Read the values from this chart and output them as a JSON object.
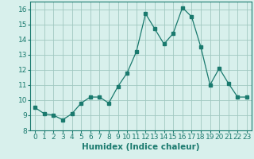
{
  "xlabel": "Humidex (Indice chaleur)",
  "x": [
    0,
    1,
    2,
    3,
    4,
    5,
    6,
    7,
    8,
    9,
    10,
    11,
    12,
    13,
    14,
    15,
    16,
    17,
    18,
    19,
    20,
    21,
    22,
    23
  ],
  "y": [
    9.5,
    9.1,
    9.0,
    8.7,
    9.1,
    9.8,
    10.2,
    10.2,
    9.8,
    10.9,
    11.8,
    13.2,
    15.7,
    14.7,
    13.7,
    14.4,
    16.1,
    15.5,
    13.5,
    11.0,
    12.1,
    11.1,
    10.2,
    10.2
  ],
  "line_color": "#1a7a6e",
  "marker": "s",
  "marker_size": 2.5,
  "bg_color": "#d8f0ec",
  "grid_color": "#a0c8c0",
  "ylim": [
    8,
    16.5
  ],
  "xlim": [
    -0.5,
    23.5
  ],
  "yticks": [
    8,
    9,
    10,
    11,
    12,
    13,
    14,
    15,
    16
  ],
  "xticks": [
    0,
    1,
    2,
    3,
    4,
    5,
    6,
    7,
    8,
    9,
    10,
    11,
    12,
    13,
    14,
    15,
    16,
    17,
    18,
    19,
    20,
    21,
    22,
    23
  ],
  "tick_fontsize": 6.5,
  "xlabel_fontsize": 7.5
}
